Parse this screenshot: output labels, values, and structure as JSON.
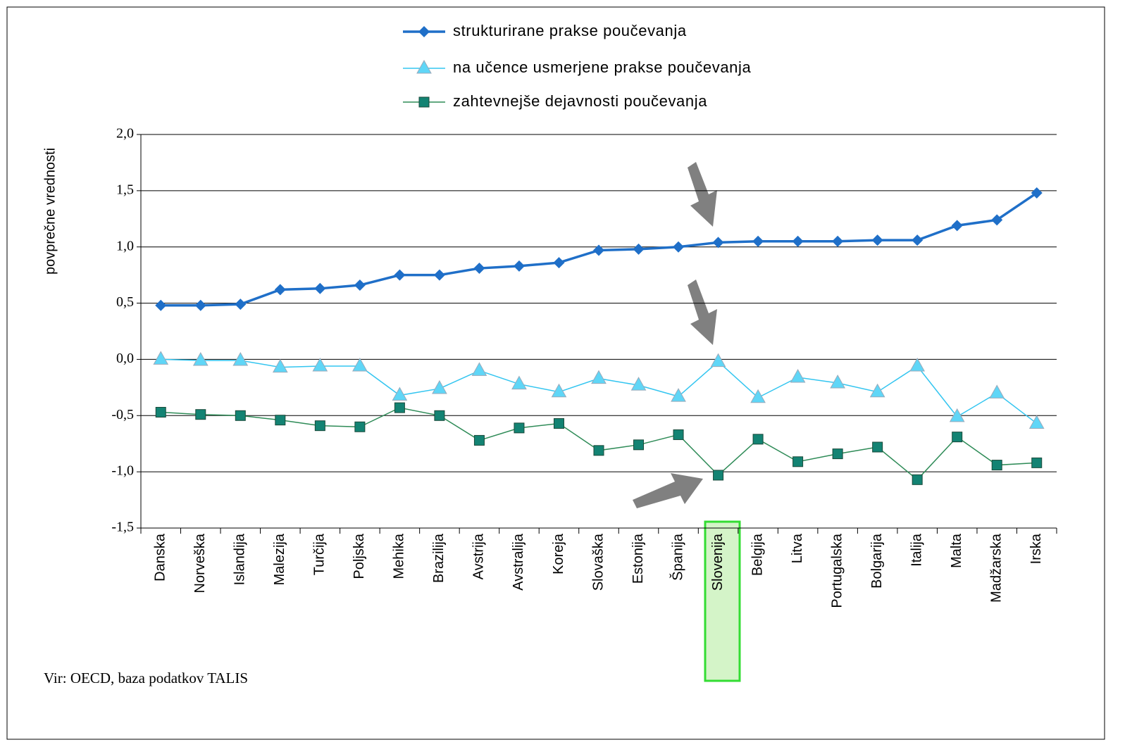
{
  "chart_data": {
    "type": "line",
    "y_label": "povprečne vrednosti",
    "source": "Vir: OECD, baza podatkov TALIS",
    "categories": [
      "Danska",
      "Norveška",
      "Islandija",
      "Malezija",
      "Turčija",
      "Poljska",
      "Mehika",
      "Brazilija",
      "Avstrija",
      "Avstralija",
      "Koreja",
      "Slovaška",
      "Estonija",
      "Španija",
      "Slovenija",
      "Belgija",
      "Litva",
      "Portugalska",
      "Bolgarija",
      "Italija",
      "Malta",
      "Madžarska",
      "Irska"
    ],
    "series": [
      {
        "name": "strukturirane prakse poučevanja",
        "color": "#1f6fc8",
        "marker": "diamond",
        "values": [
          0.48,
          0.48,
          0.49,
          0.62,
          0.63,
          0.66,
          0.75,
          0.75,
          0.81,
          0.83,
          0.86,
          0.97,
          0.98,
          1.0,
          1.04,
          1.05,
          1.05,
          1.05,
          1.06,
          1.06,
          1.19,
          1.24,
          1.48
        ]
      },
      {
        "name": "na učence usmerjene prakse poučevanja",
        "color": "#33c5f0",
        "marker": "triangle",
        "values": [
          0.0,
          -0.01,
          -0.01,
          -0.07,
          -0.06,
          -0.06,
          -0.32,
          -0.26,
          -0.1,
          -0.22,
          -0.29,
          -0.17,
          -0.23,
          -0.33,
          -0.02,
          -0.34,
          -0.16,
          -0.21,
          -0.29,
          -0.06,
          -0.51,
          -0.3,
          -0.57
        ]
      },
      {
        "name": "zahtevnejše dejavnosti poučevanja",
        "color": "#2e8b57",
        "marker": "square",
        "values": [
          -0.47,
          -0.49,
          -0.5,
          -0.54,
          -0.59,
          -0.6,
          -0.43,
          -0.5,
          -0.72,
          -0.61,
          -0.57,
          -0.81,
          -0.76,
          -0.67,
          -1.03,
          -0.71,
          -0.91,
          -0.84,
          -0.78,
          -1.07,
          -0.69,
          -0.94,
          -0.92
        ]
      }
    ],
    "ylim": [
      -1.5,
      2.0
    ],
    "yticks": [
      {
        "value": -1.5,
        "label": "-1,5"
      },
      {
        "value": -1.0,
        "label": "-1,0"
      },
      {
        "value": -0.5,
        "label": "-0,5"
      },
      {
        "value": 0.0,
        "label": "0,0"
      },
      {
        "value": 0.5,
        "label": "0,5"
      },
      {
        "value": 1.0,
        "label": "1,0"
      },
      {
        "value": 1.5,
        "label": "1,5"
      },
      {
        "value": 2.0,
        "label": "2,0"
      }
    ],
    "grid": true
  }
}
